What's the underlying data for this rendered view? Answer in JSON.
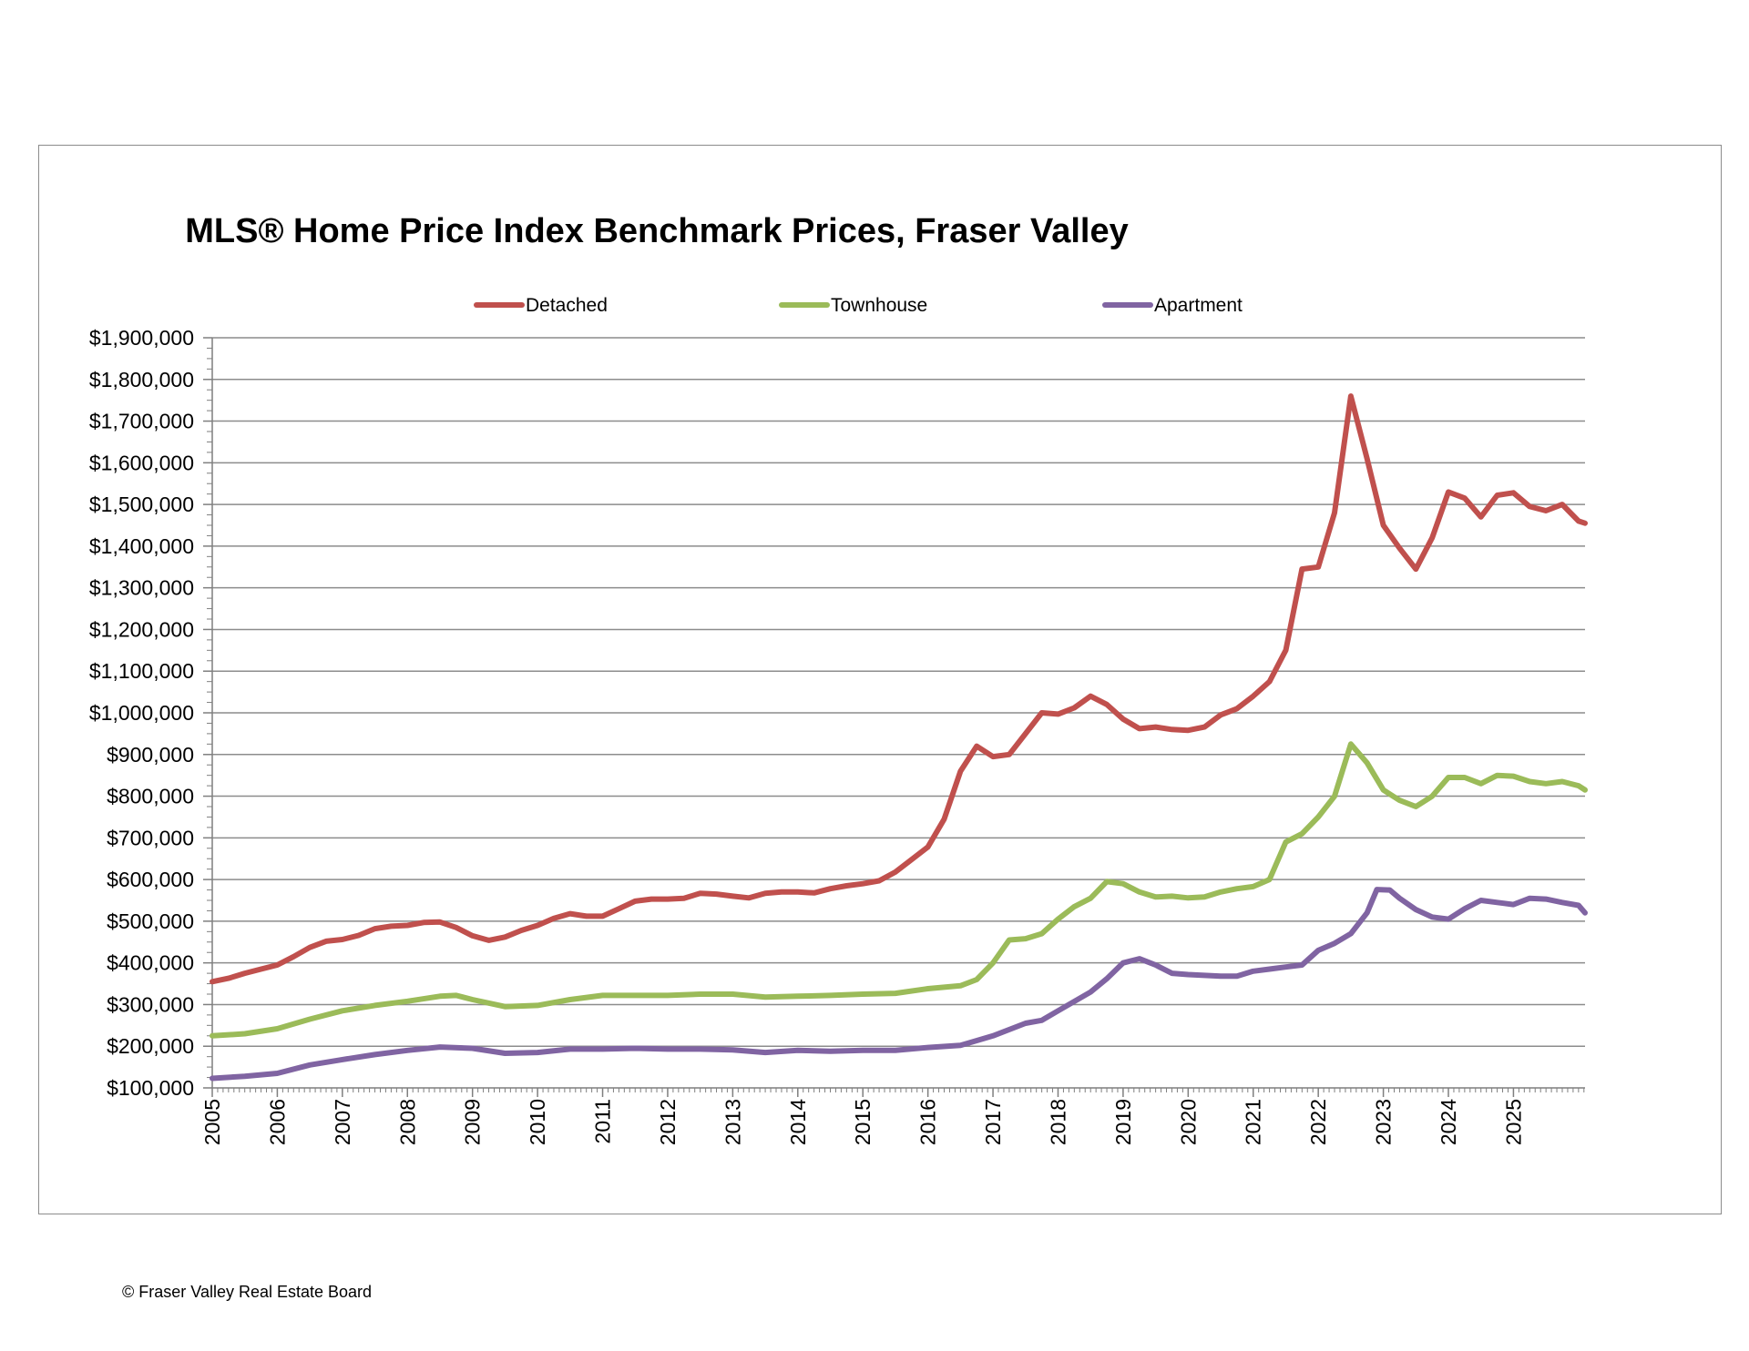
{
  "footer": "© Fraser Valley Real Estate Board",
  "chart_data": {
    "type": "line",
    "title": "MLS® Home Price Index Benchmark Prices, Fraser Valley",
    "xlabel": "",
    "ylabel": "",
    "ylim": [
      100000,
      1900000
    ],
    "xlim": [
      2005.0,
      2025.5
    ],
    "y_ticks": [
      "$100,000",
      "$200,000",
      "$300,000",
      "$400,000",
      "$500,000",
      "$600,000",
      "$700,000",
      "$800,000",
      "$900,000",
      "$1,000,000",
      "$1,100,000",
      "$1,200,000",
      "$1,300,000",
      "$1,400,000",
      "$1,500,000",
      "$1,600,000",
      "$1,700,000",
      "$1,800,000",
      "$1,900,000"
    ],
    "x_ticks": [
      "2005",
      "2006",
      "2007",
      "2008",
      "2009",
      "2010",
      "2011",
      "2012",
      "2013",
      "2014",
      "2015",
      "2016",
      "2017",
      "2018",
      "2019",
      "2020",
      "2021",
      "2022",
      "2023",
      "2024",
      "2025"
    ],
    "grid": true,
    "legend_position": "top",
    "series": [
      {
        "name": "Detached",
        "color": "#c0504d",
        "points": [
          [
            2005.0,
            355000
          ],
          [
            2005.25,
            363000
          ],
          [
            2005.5,
            375000
          ],
          [
            2005.75,
            385000
          ],
          [
            2006.0,
            395000
          ],
          [
            2006.25,
            415000
          ],
          [
            2006.5,
            437000
          ],
          [
            2006.75,
            452000
          ],
          [
            2007.0,
            456000
          ],
          [
            2007.25,
            466000
          ],
          [
            2007.5,
            482000
          ],
          [
            2007.75,
            488000
          ],
          [
            2008.0,
            490000
          ],
          [
            2008.25,
            497000
          ],
          [
            2008.5,
            498000
          ],
          [
            2008.75,
            485000
          ],
          [
            2009.0,
            465000
          ],
          [
            2009.25,
            454000
          ],
          [
            2009.5,
            462000
          ],
          [
            2009.75,
            478000
          ],
          [
            2010.0,
            490000
          ],
          [
            2010.25,
            507000
          ],
          [
            2010.5,
            518000
          ],
          [
            2010.75,
            512000
          ],
          [
            2011.0,
            512000
          ],
          [
            2011.25,
            530000
          ],
          [
            2011.5,
            548000
          ],
          [
            2011.75,
            553000
          ],
          [
            2012.0,
            553000
          ],
          [
            2012.25,
            555000
          ],
          [
            2012.5,
            567000
          ],
          [
            2012.75,
            565000
          ],
          [
            2013.0,
            560000
          ],
          [
            2013.25,
            556000
          ],
          [
            2013.5,
            567000
          ],
          [
            2013.75,
            570000
          ],
          [
            2014.0,
            570000
          ],
          [
            2014.25,
            568000
          ],
          [
            2014.5,
            578000
          ],
          [
            2014.75,
            585000
          ],
          [
            2015.0,
            590000
          ],
          [
            2015.25,
            597000
          ],
          [
            2015.5,
            618000
          ],
          [
            2015.75,
            648000
          ],
          [
            2016.0,
            678000
          ],
          [
            2016.25,
            745000
          ],
          [
            2016.5,
            860000
          ],
          [
            2016.75,
            920000
          ],
          [
            2017.0,
            895000
          ],
          [
            2017.25,
            900000
          ],
          [
            2017.5,
            950000
          ],
          [
            2017.75,
            1000000
          ],
          [
            2018.0,
            997000
          ],
          [
            2018.25,
            1012000
          ],
          [
            2018.5,
            1040000
          ],
          [
            2018.75,
            1020000
          ],
          [
            2019.0,
            985000
          ],
          [
            2019.25,
            962000
          ],
          [
            2019.5,
            966000
          ],
          [
            2019.75,
            960000
          ],
          [
            2020.0,
            958000
          ],
          [
            2020.25,
            966000
          ],
          [
            2020.5,
            995000
          ],
          [
            2020.75,
            1010000
          ],
          [
            2021.0,
            1040000
          ],
          [
            2021.25,
            1075000
          ],
          [
            2021.5,
            1150000
          ],
          [
            2021.75,
            1345000
          ],
          [
            2022.0,
            1350000
          ],
          [
            2022.25,
            1480000
          ],
          [
            2022.5,
            1760000
          ],
          [
            2022.75,
            1610000
          ],
          [
            2023.0,
            1450000
          ],
          [
            2023.25,
            1395000
          ],
          [
            2023.5,
            1345000
          ],
          [
            2023.75,
            1420000
          ],
          [
            2024.0,
            1530000
          ],
          [
            2024.25,
            1515000
          ],
          [
            2024.5,
            1470000
          ],
          [
            2024.75,
            1522000
          ],
          [
            2025.0,
            1528000
          ],
          [
            2025.25,
            1495000
          ],
          [
            2025.5,
            1485000
          ],
          [
            2025.75,
            1500000
          ],
          [
            2026.0,
            1460000
          ],
          [
            2026.1,
            1455000
          ]
        ]
      },
      {
        "name": "Townhouse",
        "color": "#9bbb59",
        "points": [
          [
            2005.0,
            225000
          ],
          [
            2005.5,
            230000
          ],
          [
            2006.0,
            242000
          ],
          [
            2006.5,
            265000
          ],
          [
            2007.0,
            285000
          ],
          [
            2007.5,
            298000
          ],
          [
            2008.0,
            308000
          ],
          [
            2008.5,
            320000
          ],
          [
            2008.75,
            322000
          ],
          [
            2009.0,
            312000
          ],
          [
            2009.5,
            295000
          ],
          [
            2010.0,
            298000
          ],
          [
            2010.5,
            312000
          ],
          [
            2011.0,
            322000
          ],
          [
            2011.5,
            322000
          ],
          [
            2012.0,
            322000
          ],
          [
            2012.5,
            325000
          ],
          [
            2013.0,
            325000
          ],
          [
            2013.5,
            318000
          ],
          [
            2014.0,
            320000
          ],
          [
            2014.5,
            322000
          ],
          [
            2015.0,
            325000
          ],
          [
            2015.5,
            327000
          ],
          [
            2016.0,
            338000
          ],
          [
            2016.5,
            345000
          ],
          [
            2016.75,
            360000
          ],
          [
            2017.0,
            400000
          ],
          [
            2017.25,
            455000
          ],
          [
            2017.5,
            458000
          ],
          [
            2017.75,
            470000
          ],
          [
            2018.0,
            505000
          ],
          [
            2018.25,
            535000
          ],
          [
            2018.5,
            555000
          ],
          [
            2018.75,
            595000
          ],
          [
            2019.0,
            590000
          ],
          [
            2019.25,
            570000
          ],
          [
            2019.5,
            558000
          ],
          [
            2019.75,
            560000
          ],
          [
            2020.0,
            556000
          ],
          [
            2020.25,
            558000
          ],
          [
            2020.5,
            570000
          ],
          [
            2020.75,
            578000
          ],
          [
            2021.0,
            583000
          ],
          [
            2021.25,
            600000
          ],
          [
            2021.5,
            690000
          ],
          [
            2021.75,
            710000
          ],
          [
            2022.0,
            750000
          ],
          [
            2022.25,
            800000
          ],
          [
            2022.5,
            925000
          ],
          [
            2022.75,
            880000
          ],
          [
            2023.0,
            815000
          ],
          [
            2023.25,
            790000
          ],
          [
            2023.5,
            775000
          ],
          [
            2023.75,
            800000
          ],
          [
            2024.0,
            845000
          ],
          [
            2024.25,
            845000
          ],
          [
            2024.5,
            830000
          ],
          [
            2024.75,
            850000
          ],
          [
            2025.0,
            848000
          ],
          [
            2025.25,
            835000
          ],
          [
            2025.5,
            830000
          ],
          [
            2025.75,
            835000
          ],
          [
            2026.0,
            825000
          ],
          [
            2026.1,
            815000
          ]
        ]
      },
      {
        "name": "Apartment",
        "color": "#8064a2",
        "points": [
          [
            2005.0,
            123000
          ],
          [
            2005.5,
            128000
          ],
          [
            2006.0,
            135000
          ],
          [
            2006.5,
            155000
          ],
          [
            2007.0,
            168000
          ],
          [
            2007.5,
            180000
          ],
          [
            2008.0,
            190000
          ],
          [
            2008.5,
            198000
          ],
          [
            2009.0,
            195000
          ],
          [
            2009.5,
            183000
          ],
          [
            2010.0,
            185000
          ],
          [
            2010.5,
            193000
          ],
          [
            2011.0,
            193000
          ],
          [
            2011.5,
            195000
          ],
          [
            2012.0,
            193000
          ],
          [
            2012.5,
            193000
          ],
          [
            2013.0,
            191000
          ],
          [
            2013.5,
            185000
          ],
          [
            2014.0,
            190000
          ],
          [
            2014.5,
            188000
          ],
          [
            2015.0,
            190000
          ],
          [
            2015.5,
            190000
          ],
          [
            2016.0,
            197000
          ],
          [
            2016.5,
            202000
          ],
          [
            2017.0,
            225000
          ],
          [
            2017.5,
            255000
          ],
          [
            2017.75,
            262000
          ],
          [
            2018.0,
            285000
          ],
          [
            2018.5,
            330000
          ],
          [
            2018.75,
            362000
          ],
          [
            2019.0,
            400000
          ],
          [
            2019.25,
            410000
          ],
          [
            2019.5,
            395000
          ],
          [
            2019.75,
            375000
          ],
          [
            2020.0,
            372000
          ],
          [
            2020.5,
            368000
          ],
          [
            2020.75,
            368000
          ],
          [
            2021.0,
            380000
          ],
          [
            2021.5,
            390000
          ],
          [
            2021.75,
            395000
          ],
          [
            2022.0,
            430000
          ],
          [
            2022.25,
            447000
          ],
          [
            2022.5,
            470000
          ],
          [
            2022.75,
            520000
          ],
          [
            2022.9,
            576000
          ],
          [
            2023.1,
            575000
          ],
          [
            2023.25,
            555000
          ],
          [
            2023.5,
            528000
          ],
          [
            2023.75,
            510000
          ],
          [
            2024.0,
            505000
          ],
          [
            2024.25,
            530000
          ],
          [
            2024.5,
            550000
          ],
          [
            2024.75,
            545000
          ],
          [
            2025.0,
            540000
          ],
          [
            2025.25,
            555000
          ],
          [
            2025.5,
            553000
          ],
          [
            2025.75,
            545000
          ],
          [
            2026.0,
            538000
          ],
          [
            2026.1,
            520000
          ]
        ]
      }
    ]
  }
}
